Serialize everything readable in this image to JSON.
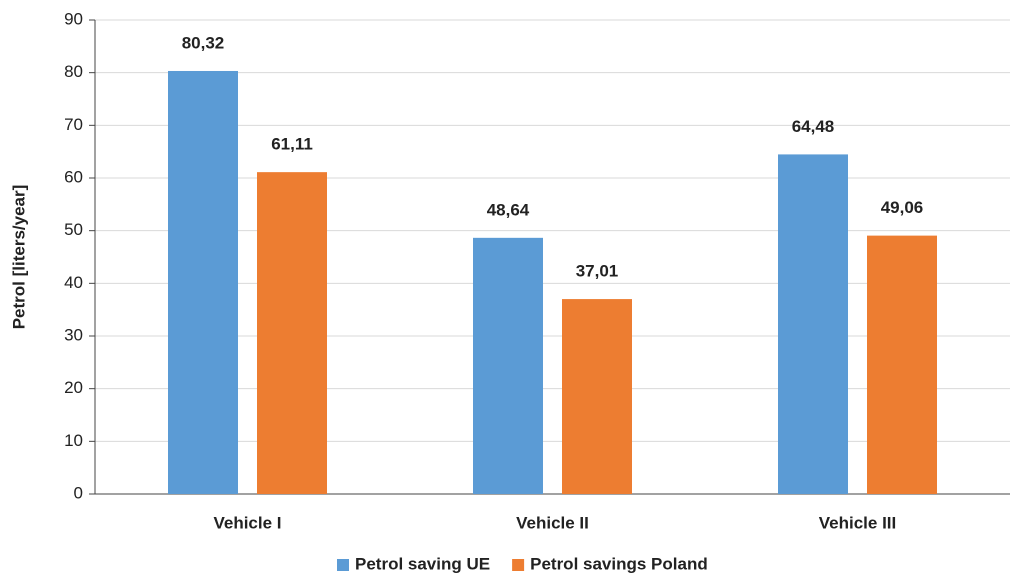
{
  "chart_data": {
    "type": "bar",
    "y_label": "Petrol [liters/year]",
    "categories": [
      "Vehicle I",
      "Vehicle II",
      "Vehicle III"
    ],
    "series": [
      {
        "name": "Petrol saving UE",
        "color": "#5b9bd5",
        "values": [
          80.32,
          48.64,
          64.48
        ],
        "value_labels": [
          "80,32",
          "48,64",
          "64,48"
        ]
      },
      {
        "name": "Petrol savings Poland",
        "color": "#ed7d31",
        "values": [
          61.11,
          37.01,
          49.06
        ],
        "value_labels": [
          "61,11",
          "37,01",
          "49,06"
        ]
      }
    ],
    "ylim": [
      0,
      90
    ],
    "yticks": [
      0,
      10,
      20,
      30,
      40,
      50,
      60,
      70,
      80,
      90
    ],
    "grid": true,
    "legend": "bottom"
  }
}
